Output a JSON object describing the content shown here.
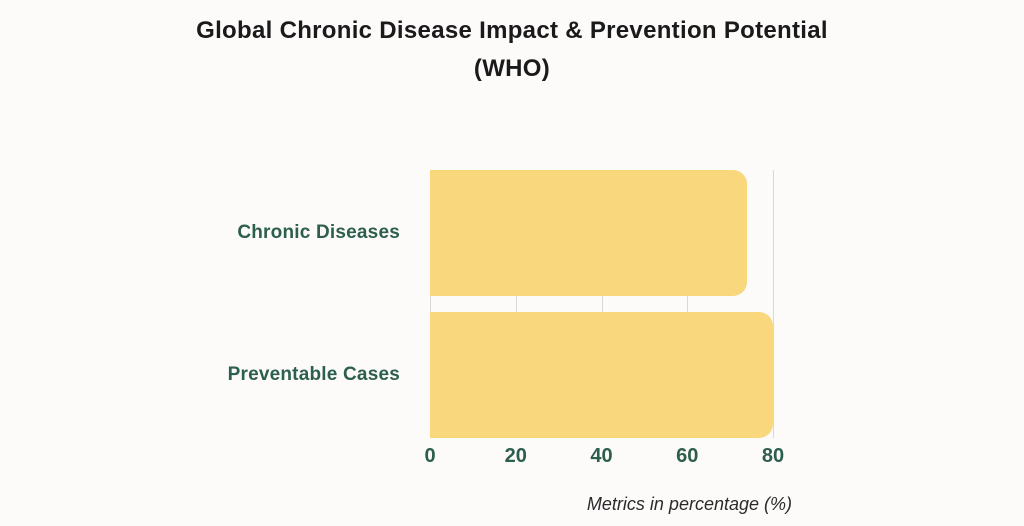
{
  "page": {
    "background_color": "#FDFAFA"
  },
  "title": {
    "line1": "Global Chronic Disease Impact & Prevention Potential",
    "line2": "(WHO)",
    "color": "#1A1A1A"
  },
  "chart_data": {
    "type": "bar",
    "orientation": "horizontal",
    "title": "Global Chronic Disease Impact & Prevention Potential (WHO)",
    "categories": [
      "Chronic Diseases",
      "Preventable Cases"
    ],
    "values": [
      74,
      80
    ],
    "xlabel": "Metrics in percentage (%)",
    "ylabel": "",
    "xlim": [
      0,
      80
    ],
    "xticks": [
      0,
      20,
      40,
      60,
      80
    ],
    "grid": true,
    "legend": "none",
    "bar_color": "#F8D77D",
    "category_label_color": "#2D5F4E",
    "tick_label_color": "#2D5F4E",
    "gridline_color": "#D8D8D8",
    "caption_color": "#2B2B2B"
  }
}
